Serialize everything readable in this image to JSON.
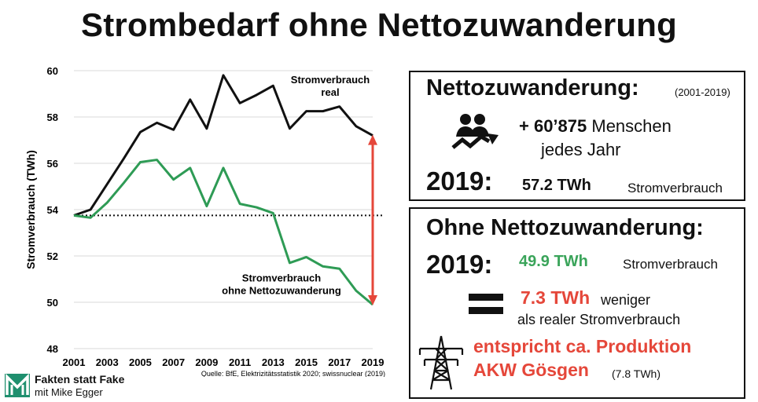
{
  "title": "Strombedarf ohne Nettozuwanderung",
  "chart_data": {
    "type": "line",
    "x": [
      2001,
      2002,
      2003,
      2004,
      2005,
      2006,
      2007,
      2008,
      2009,
      2010,
      2011,
      2012,
      2013,
      2014,
      2015,
      2016,
      2017,
      2018,
      2019
    ],
    "series": [
      {
        "name": "Stromverbrauch real",
        "color": "#111111",
        "values": [
          53.75,
          54.0,
          55.1,
          56.2,
          57.35,
          57.75,
          57.45,
          58.75,
          57.5,
          59.8,
          58.6,
          58.95,
          59.35,
          57.5,
          58.25,
          58.25,
          58.45,
          57.6,
          57.2
        ]
      },
      {
        "name": "Stromverbrauch ohne Nettozuwanderung",
        "color": "#2e9b55",
        "values": [
          53.75,
          53.65,
          54.3,
          55.15,
          56.05,
          56.15,
          55.3,
          55.8,
          54.15,
          55.8,
          54.25,
          54.1,
          53.85,
          51.7,
          51.95,
          51.55,
          51.45,
          50.5,
          49.9
        ]
      }
    ],
    "series_labels": [
      [
        "Stromverbrauch",
        "real"
      ],
      [
        "Stromverbrauch",
        "ohne Nettozuwanderung"
      ]
    ],
    "baseline": 53.75,
    "arrow": {
      "from": 57.2,
      "to": 49.9,
      "x": 2019,
      "color": "#e5473a"
    },
    "xticks": [
      2001,
      2003,
      2005,
      2007,
      2009,
      2011,
      2013,
      2015,
      2017,
      2019
    ],
    "yticks": [
      48,
      50,
      52,
      54,
      56,
      58,
      60
    ],
    "ylim": [
      48,
      60
    ],
    "ylabel": "Stromverbrauch (TWh)",
    "xlabel": "",
    "grid": "horizontal",
    "source": "Quelle: BfE, Elektrizitätsstatistik 2020; swissnuclear (2019)"
  },
  "box1": {
    "title": "Nettozuwanderung:",
    "range": "(2001-2019)",
    "icon": "people-growth-icon",
    "plus": "+ 60’875",
    "plus_unit": "Menschen",
    "per_year": "jedes Jahr",
    "year": "2019:",
    "value": "57.2 TWh",
    "value_label": "Stromverbrauch"
  },
  "box2": {
    "title": "Ohne Nettozuwanderung:",
    "year": "2019:",
    "value": "49.9 TWh",
    "value_label": "Stromverbrauch",
    "diff": "7.3 TWh",
    "diff_label": "weniger",
    "diff_label2": "als realer Stromverbrauch",
    "icon": "power-pylon-icon",
    "equiv1": "entspricht ca. Produktion",
    "equiv2": "AKW Gösgen",
    "equiv_value": "(7.8 TWh)",
    "colors": {
      "green": "#3aa45a",
      "red": "#e5473a"
    }
  },
  "brand": {
    "line1": "Fakten statt Fake",
    "line2": "mit Mike Egger",
    "logo_color": "#1f8f6e"
  }
}
